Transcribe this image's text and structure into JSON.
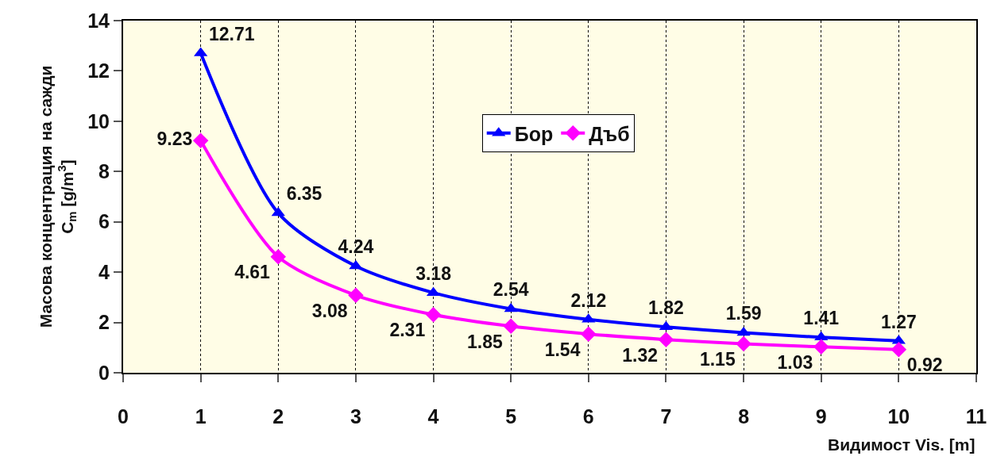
{
  "chart_data": {
    "type": "line",
    "xlabel": "Видимост Vis. [m]",
    "ylabel": "Масова концентрация на сажди\nC$_{m}$ [g/m$^{3}$]",
    "x": [
      1,
      2,
      3,
      4,
      5,
      6,
      7,
      8,
      9,
      10
    ],
    "series": [
      {
        "name": "Бор",
        "color": "#0000ff",
        "marker": "triangle",
        "values": [
          12.71,
          6.35,
          4.24,
          3.18,
          2.54,
          2.12,
          1.82,
          1.59,
          1.41,
          1.27
        ]
      },
      {
        "name": "Дъб",
        "color": "#ff00ff",
        "marker": "diamond",
        "values": [
          9.23,
          4.61,
          3.08,
          2.31,
          1.85,
          1.54,
          1.32,
          1.15,
          1.03,
          0.92
        ]
      }
    ],
    "xlim": [
      0,
      11
    ],
    "xticks": [
      0,
      1,
      2,
      3,
      4,
      5,
      6,
      7,
      8,
      9,
      10,
      11
    ],
    "ylim": [
      0,
      14
    ],
    "yticks": [
      0,
      2,
      4,
      6,
      8,
      10,
      12,
      14
    ],
    "grid": "x",
    "legend": "top",
    "data_labels": true,
    "line_style": "solid"
  }
}
